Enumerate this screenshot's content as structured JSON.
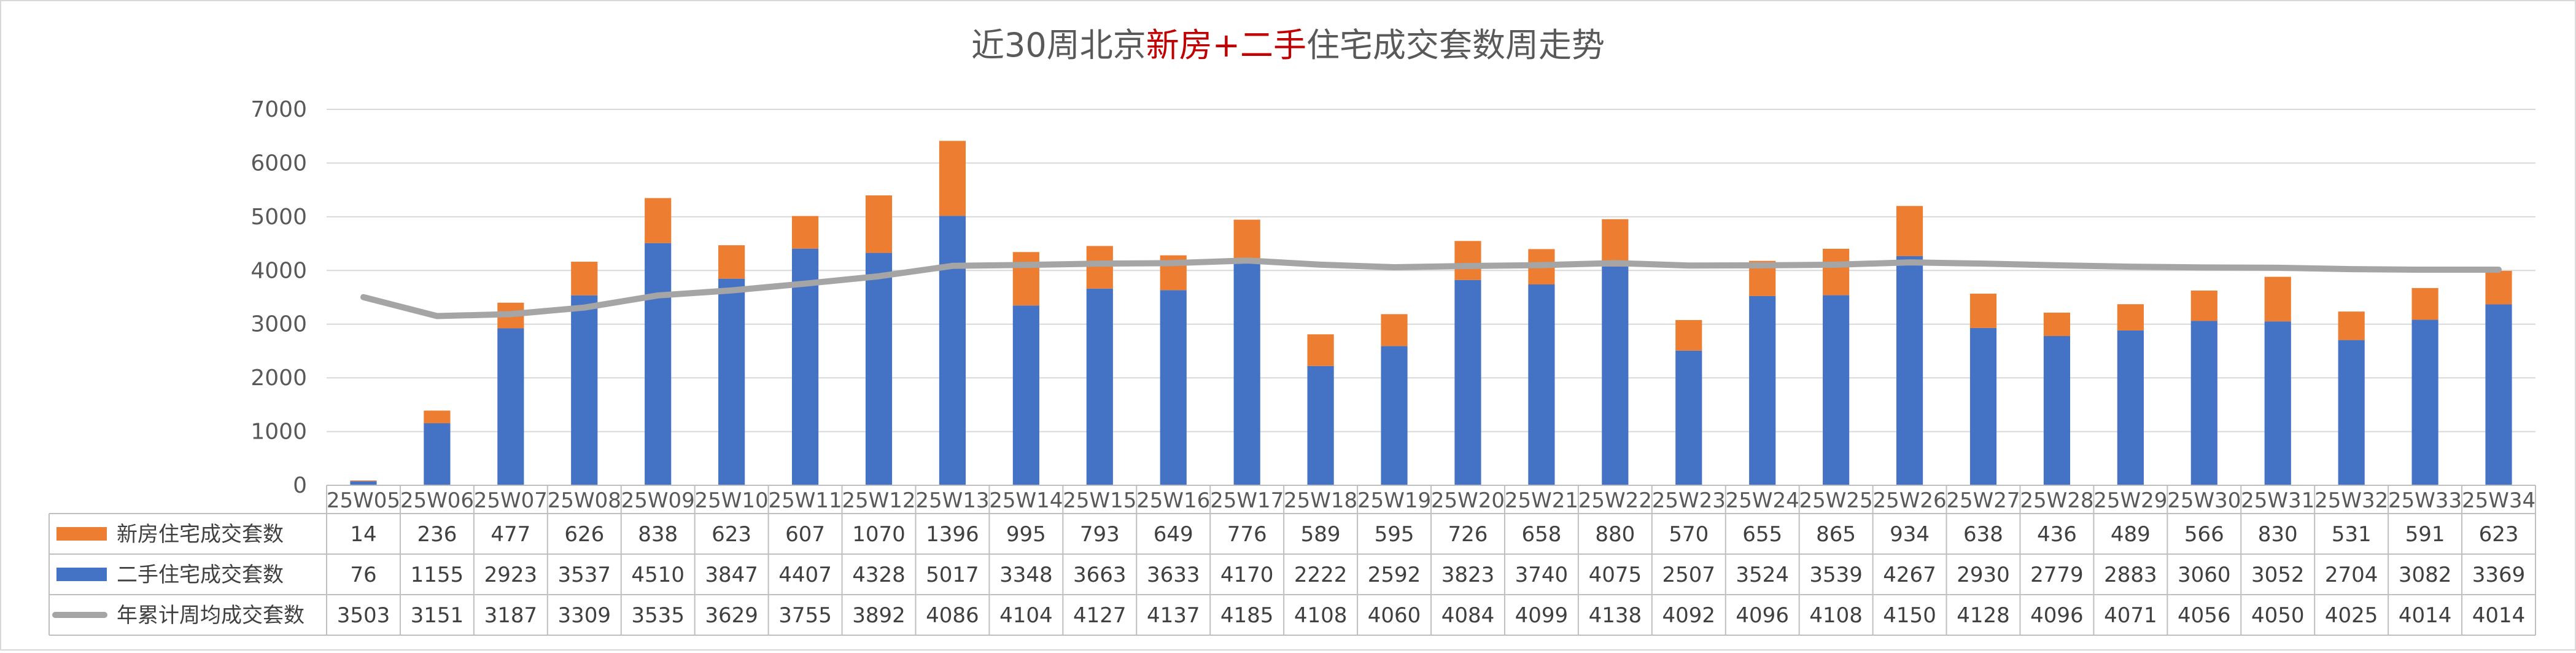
{
  "chart_data": {
    "type": "bar",
    "title_parts": [
      {
        "text": "近30周北京",
        "color": "#595959"
      },
      {
        "text": "新房+二手",
        "color": "#c00000"
      },
      {
        "text": "住宅成交套数周走势",
        "color": "#595959"
      }
    ],
    "categories": [
      "25W05",
      "25W06",
      "25W07",
      "25W08",
      "25W09",
      "25W10",
      "25W11",
      "25W12",
      "25W13",
      "25W14",
      "25W15",
      "25W16",
      "25W17",
      "25W18",
      "25W19",
      "25W20",
      "25W21",
      "25W22",
      "25W23",
      "25W24",
      "25W25",
      "25W26",
      "25W27",
      "25W28",
      "25W29",
      "25W30",
      "25W31",
      "25W32",
      "25W33",
      "25W34"
    ],
    "ylim": [
      0,
      7000
    ],
    "yticks": [
      0,
      1000,
      2000,
      3000,
      4000,
      5000,
      6000,
      7000
    ],
    "grid": true,
    "legend_position": "data table rows below the plot",
    "series": [
      {
        "name": "新房住宅成交套数",
        "type": "stacked-bar",
        "color": "#ed7d31",
        "values": [
          14,
          236,
          477,
          626,
          838,
          623,
          607,
          1070,
          1396,
          995,
          793,
          649,
          776,
          589,
          595,
          726,
          658,
          880,
          570,
          655,
          865,
          934,
          638,
          436,
          489,
          566,
          830,
          531,
          591,
          623
        ]
      },
      {
        "name": "二手住宅成交套数",
        "type": "stacked-bar",
        "color": "#4472c4",
        "values": [
          76,
          1155,
          2923,
          3537,
          4510,
          3847,
          4407,
          4328,
          5017,
          3348,
          3663,
          3633,
          4170,
          2222,
          2592,
          3823,
          3740,
          4075,
          2507,
          3524,
          3539,
          4267,
          2930,
          2779,
          2883,
          3060,
          3052,
          2704,
          3082,
          3369
        ]
      },
      {
        "name": "年累计周均成交套数",
        "type": "line",
        "color": "#a5a5a5",
        "values": [
          3503,
          3151,
          3187,
          3309,
          3535,
          3629,
          3755,
          3892,
          4086,
          4104,
          4127,
          4137,
          4185,
          4108,
          4060,
          4084,
          4099,
          4138,
          4092,
          4096,
          4108,
          4150,
          4128,
          4096,
          4071,
          4056,
          4050,
          4025,
          4014,
          4014
        ]
      }
    ],
    "table_order": [
      0,
      1,
      2
    ]
  }
}
